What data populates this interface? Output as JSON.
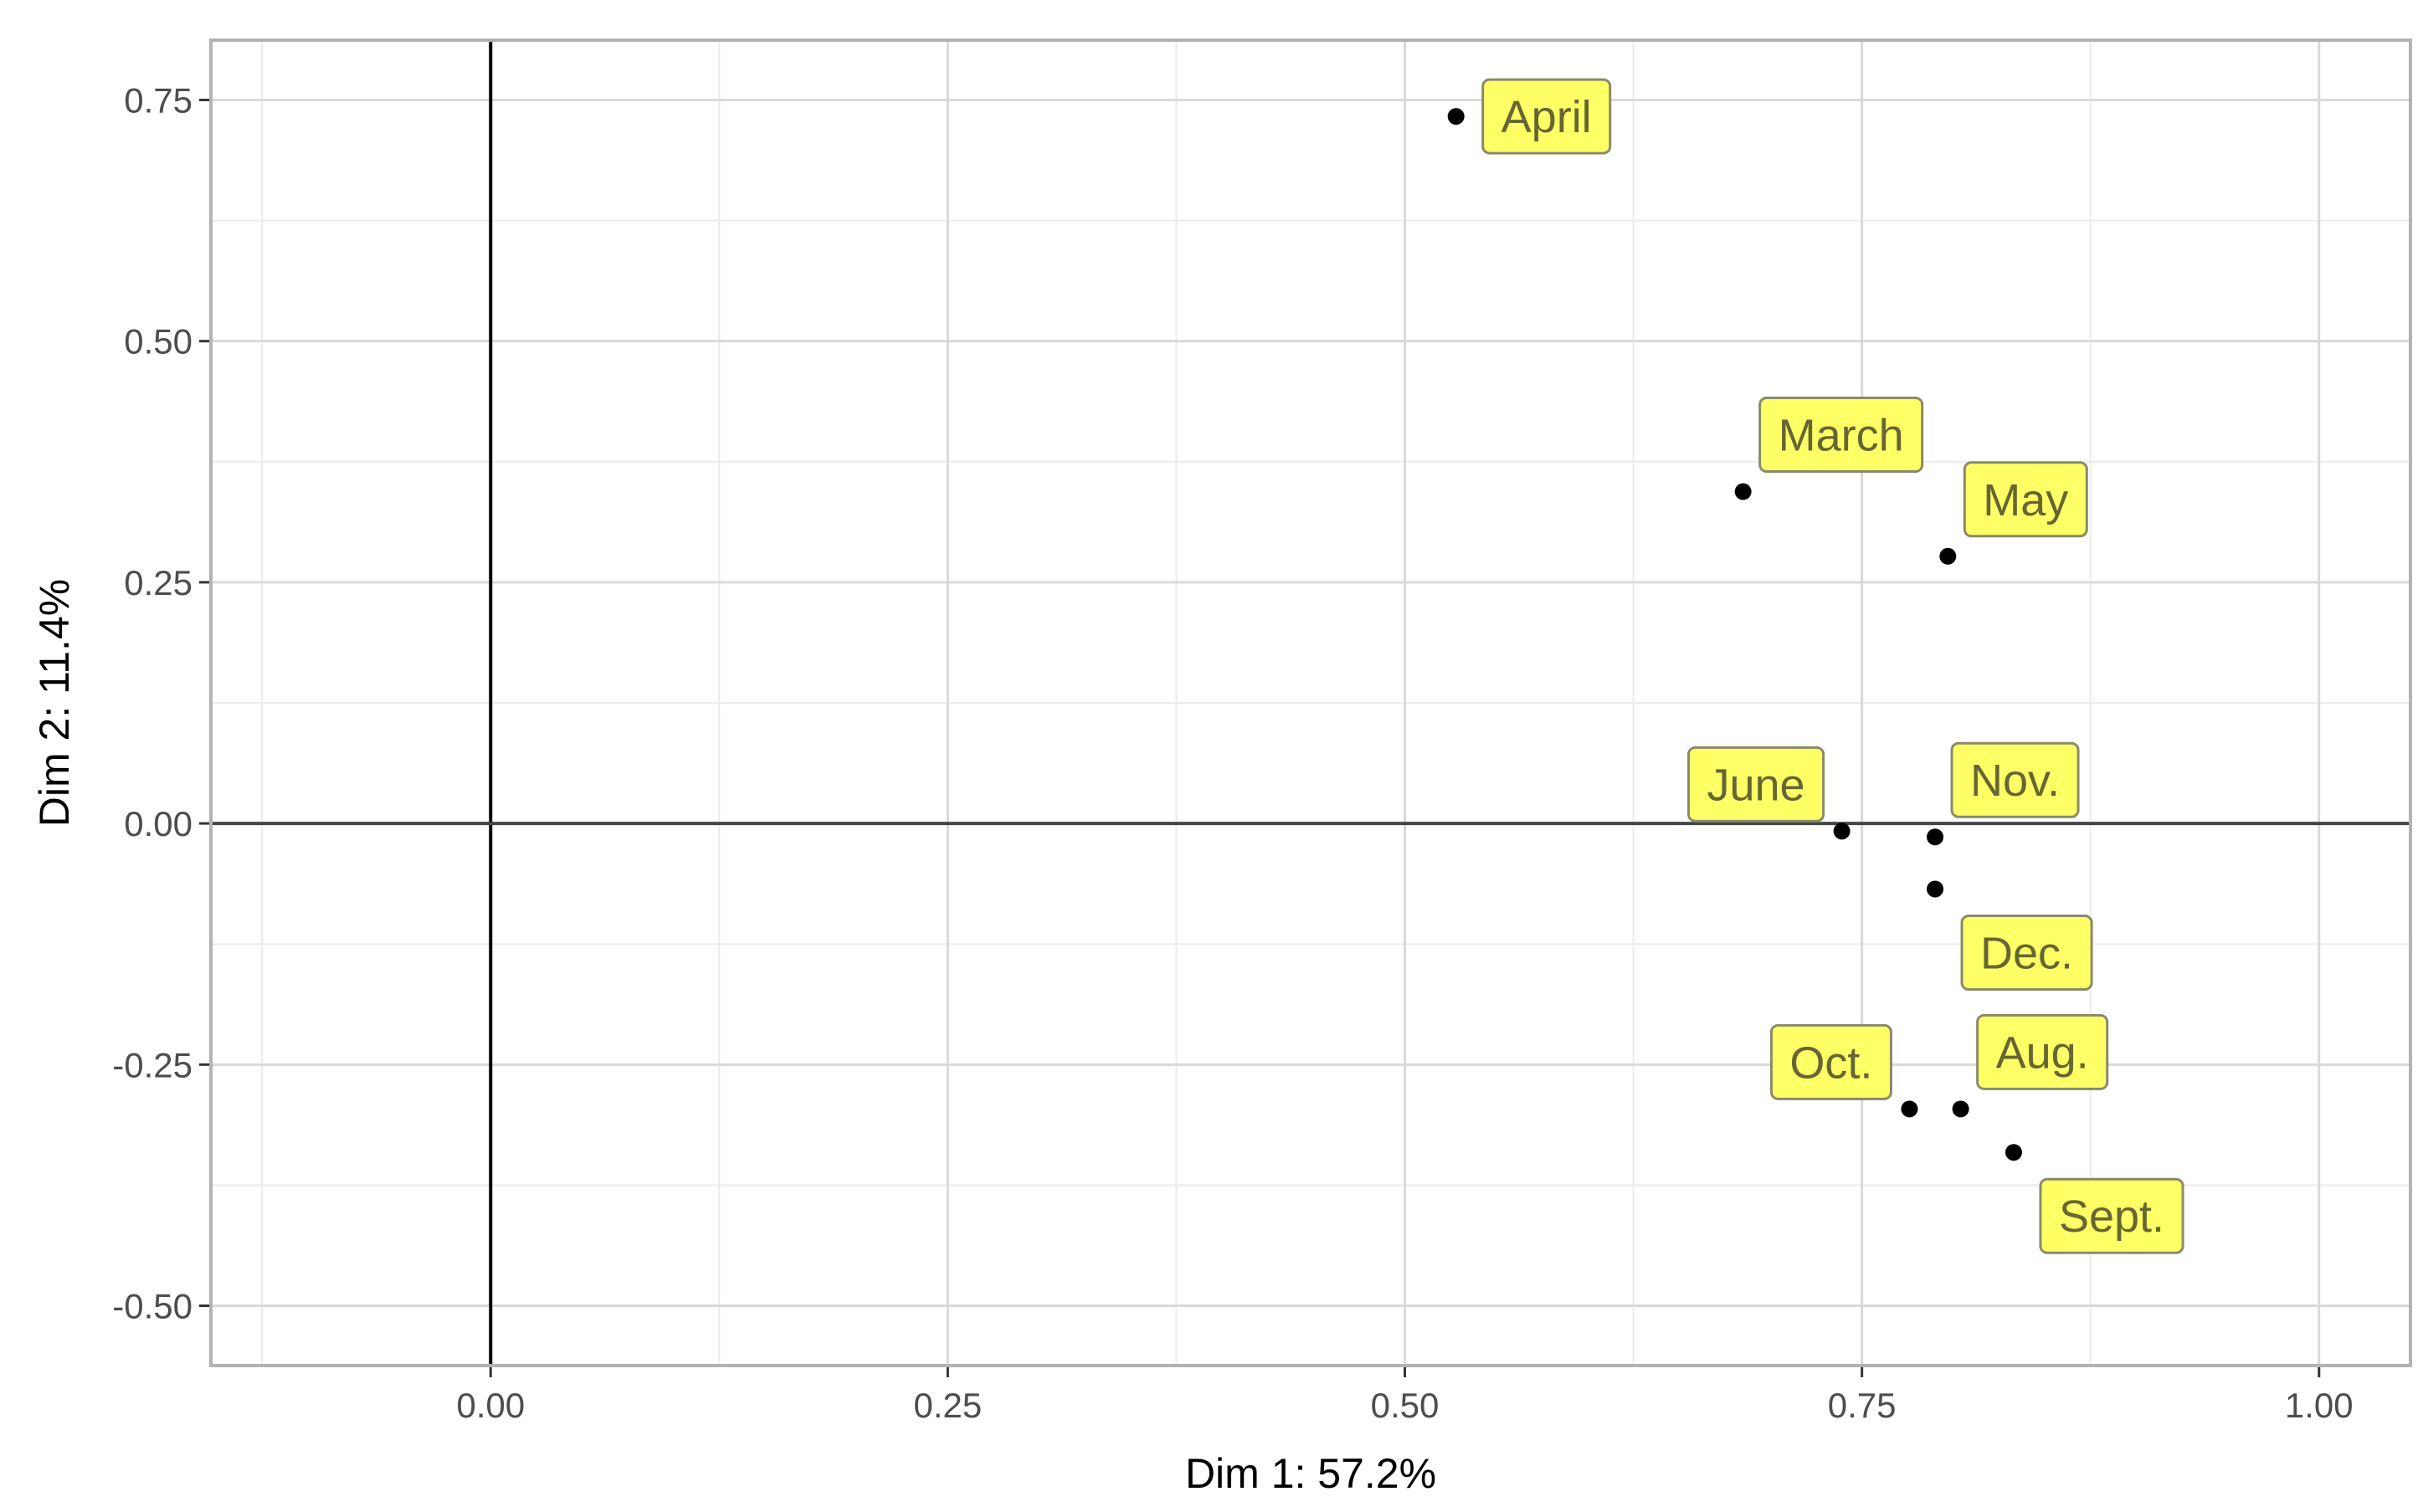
{
  "chart_data": {
    "type": "scatter",
    "xlabel": "Dim 1: 57.2%",
    "ylabel": "Dim 2: 11.4%",
    "xlim": [
      -0.153,
      1.05
    ],
    "ylim": [
      -0.562,
      0.812
    ],
    "x_ticks": [
      0.0,
      0.25,
      0.5,
      0.75,
      1.0
    ],
    "x_tick_labels": [
      "0.00",
      "0.25",
      "0.50",
      "0.75",
      "1.00"
    ],
    "y_ticks": [
      -0.5,
      -0.25,
      0.0,
      0.25,
      0.5,
      0.75
    ],
    "y_tick_labels": [
      "-0.50",
      "-0.25",
      "0.00",
      "0.25",
      "0.50",
      "0.75"
    ],
    "reference_lines": {
      "x": 0,
      "y": 0
    },
    "grid": true,
    "point_color": "#000000",
    "label_fill": "#ffff66",
    "label_text_color": "#666633",
    "points": [
      {
        "label": "April",
        "x": 0.528,
        "y": 0.733,
        "label_pos": "right"
      },
      {
        "label": "March",
        "x": 0.685,
        "y": 0.344,
        "label_pos": "above-right"
      },
      {
        "label": "May",
        "x": 0.797,
        "y": 0.277,
        "label_pos": "above-right"
      },
      {
        "label": "June",
        "x": 0.739,
        "y": -0.008,
        "label_pos": "above-left"
      },
      {
        "label": "Nov.",
        "x": 0.79,
        "y": -0.014,
        "label_pos": "above-right"
      },
      {
        "label": "Dec.",
        "x": 0.79,
        "y": -0.068,
        "label_pos": "below-right"
      },
      {
        "label": "Oct.",
        "x": 0.776,
        "y": -0.296,
        "label_pos": "above-left"
      },
      {
        "label": "Aug.",
        "x": 0.804,
        "y": -0.296,
        "label_pos": "above-right"
      },
      {
        "label": "Sept.",
        "x": 0.833,
        "y": -0.341,
        "label_pos": "below-right"
      }
    ]
  }
}
